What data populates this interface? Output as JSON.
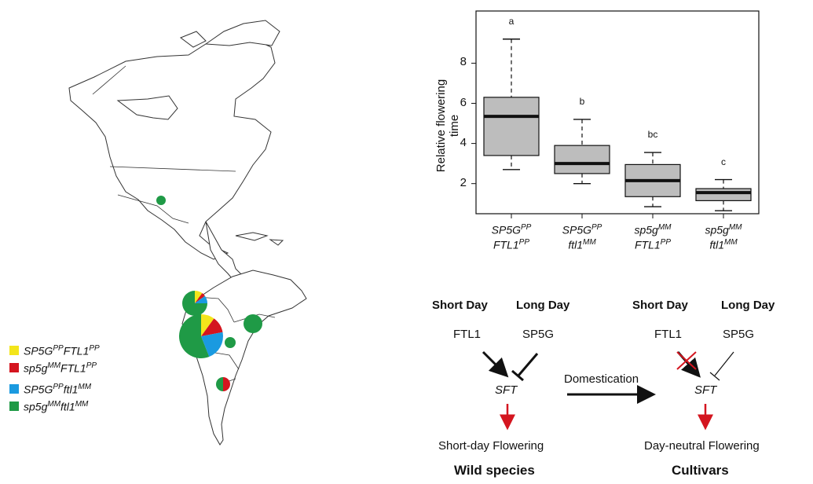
{
  "legend": [
    {
      "g1": "SP5G",
      "s1": "PP",
      "g2": "FTL1",
      "s2": "PP",
      "color": "#f3e51b"
    },
    {
      "g1": "sp5g",
      "s1": "MM",
      "g2": "FTL1",
      "s2": "PP",
      "color": "#d4151f"
    },
    {
      "g1": "SP5G",
      "s1": "PP",
      "g2": "ftl1",
      "s2": "MM",
      "color": "#1a9ae0"
    },
    {
      "g1": "sp5g",
      "s1": "MM",
      "g2": "ftl1",
      "s2": "MM",
      "color": "#1f9a46"
    }
  ],
  "chart_data": {
    "type": "box",
    "ylabel": "Relative flowering time",
    "yticks": [
      2,
      4,
      6,
      8
    ],
    "ylim": [
      0.5,
      10.6
    ],
    "categories": [
      {
        "l1g": "SP5G",
        "l1s": "PP",
        "l2g": "FTL1",
        "l2s": "PP"
      },
      {
        "l1g": "SP5G",
        "l1s": "PP",
        "l2g": "ftl1",
        "l2s": "MM"
      },
      {
        "l1g": "sp5g",
        "l1s": "MM",
        "l2g": "FTL1",
        "l2s": "PP"
      },
      {
        "l1g": "sp5g",
        "l1s": "MM",
        "l2g": "ftl1",
        "l2s": "MM"
      }
    ],
    "boxes": [
      {
        "min": 2.7,
        "q1": 3.4,
        "median": 5.35,
        "q3": 6.3,
        "max": 9.2,
        "letter": "a"
      },
      {
        "min": 2.0,
        "q1": 2.5,
        "median": 3.0,
        "q3": 3.9,
        "max": 5.2,
        "letter": "b"
      },
      {
        "min": 0.85,
        "q1": 1.35,
        "median": 2.15,
        "q3": 2.95,
        "max": 3.55,
        "letter": "bc"
      },
      {
        "min": 0.65,
        "q1": 1.15,
        "median": 1.55,
        "q3": 1.75,
        "max": 2.2,
        "letter": "c"
      }
    ],
    "box_color": "#bdbdbd"
  },
  "diagram": {
    "left": {
      "col1": "Short Day",
      "col2": "Long Day",
      "gene1": "FTL1",
      "gene2": "SP5G",
      "target": "SFT",
      "outcome": "Short-day Flowering",
      "group": "Wild species"
    },
    "arrow_label": "Domestication",
    "right": {
      "col1": "Short Day",
      "col2": "Long Day",
      "gene1": "FTL1",
      "gene2": "SP5G",
      "target": "SFT",
      "outcome": "Day-neutral Flowering",
      "group": "Cultivars"
    },
    "accent_red": "#d4151f"
  }
}
